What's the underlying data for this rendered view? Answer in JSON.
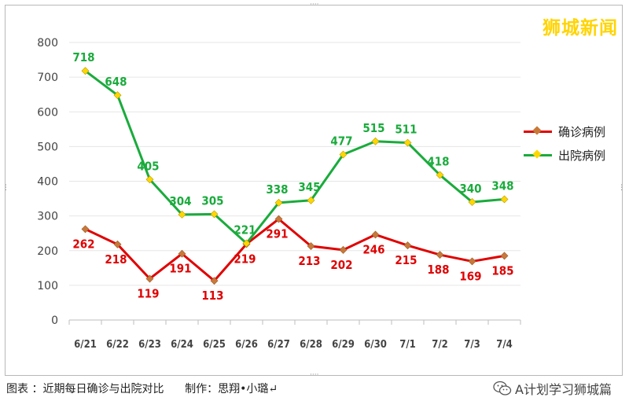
{
  "brand": "狮城新闻",
  "footer": {
    "caption": "图表 ：近期每日确诊与出院对比",
    "author": "制作：思翔•小璐↵"
  },
  "watermark": {
    "icon": "wechat-icon",
    "text": "A计划学习狮城篇"
  },
  "chart_data": {
    "type": "line",
    "categories": [
      "6/21",
      "6/22",
      "6/23",
      "6/24",
      "6/25",
      "6/26",
      "6/27",
      "6/28",
      "6/29",
      "6/30",
      "7/1",
      "7/2",
      "7/3",
      "7/4"
    ],
    "series": [
      {
        "name": "确诊病例",
        "color": "#e00000",
        "label_color": "#e00000",
        "marker_color": "#c8793a",
        "values": [
          262,
          218,
          119,
          191,
          113,
          219,
          291,
          213,
          202,
          246,
          215,
          188,
          169,
          185
        ]
      },
      {
        "name": "出院病例",
        "color": "#1aab3c",
        "label_color": "#1aab3c",
        "marker_color": "#ffd700",
        "values": [
          718,
          648,
          405,
          304,
          305,
          221,
          338,
          345,
          477,
          515,
          511,
          418,
          340,
          348
        ]
      }
    ],
    "yticks": [
      0,
      100,
      200,
      300,
      400,
      500,
      600,
      700,
      800
    ],
    "ylim": [
      0,
      800
    ],
    "grid": true,
    "legend": "right"
  }
}
